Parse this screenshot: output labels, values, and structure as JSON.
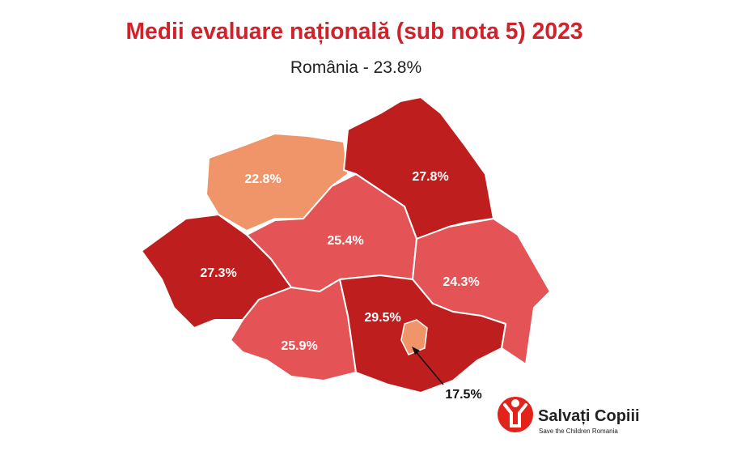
{
  "title": "Medii evaluare națională (sub nota 5) 2023",
  "subtitle": "România - 23.8%",
  "regions": [
    {
      "label": "22.8%"
    },
    {
      "label": "27.8%"
    },
    {
      "label": "25.4%"
    },
    {
      "label": "27.3%"
    },
    {
      "label": "24.3%"
    },
    {
      "label": "25.9%"
    },
    {
      "label": "29.5%"
    }
  ],
  "callout": {
    "label": "17.5%"
  },
  "logo": {
    "name": "Salvați Copiii",
    "tagline": "Save the Children Romania"
  }
}
